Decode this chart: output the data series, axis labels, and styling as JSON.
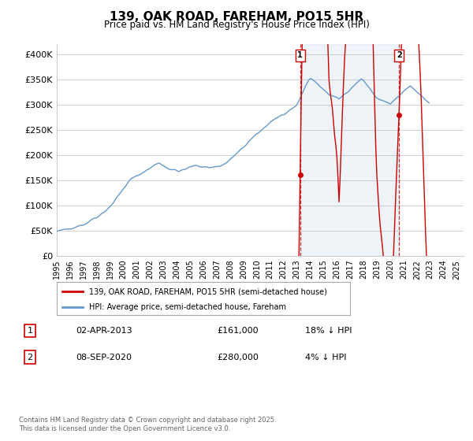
{
  "title": "139, OAK ROAD, FAREHAM, PO15 5HR",
  "subtitle": "Price paid vs. HM Land Registry's House Price Index (HPI)",
  "ylim": [
    0,
    420000
  ],
  "yticks": [
    0,
    50000,
    100000,
    150000,
    200000,
    250000,
    300000,
    350000,
    400000
  ],
  "ytick_labels": [
    "£0",
    "£50K",
    "£100K",
    "£150K",
    "£200K",
    "£250K",
    "£300K",
    "£350K",
    "£400K"
  ],
  "legend_red": "139, OAK ROAD, FAREHAM, PO15 5HR (semi-detached house)",
  "legend_blue": "HPI: Average price, semi-detached house, Fareham",
  "annotation1_label": "1",
  "annotation1_date": "02-APR-2013",
  "annotation1_price": "£161,000",
  "annotation1_hpi": "18% ↓ HPI",
  "annotation2_label": "2",
  "annotation2_date": "08-SEP-2020",
  "annotation2_price": "£280,000",
  "annotation2_hpi": "4% ↓ HPI",
  "footer": "Contains HM Land Registry data © Crown copyright and database right 2025.\nThis data is licensed under the Open Government Licence v3.0.",
  "red_color": "#cc0000",
  "blue_color": "#6699cc",
  "vline_color": "#cc0000",
  "background_color": "#ffffff",
  "grid_color": "#cccccc",
  "sale1_year": 2013.25,
  "sale1_value": 161000,
  "sale2_year": 2020.67,
  "sale2_value": 280000,
  "hpi_monthly": [
    48000,
    48500,
    49000,
    49800,
    50200,
    50800,
    51500,
    52000,
    52500,
    53000,
    53500,
    54000,
    54500,
    55000,
    55800,
    56500,
    57000,
    57800,
    58500,
    59000,
    59800,
    60500,
    61000,
    61500,
    62000,
    63000,
    64000,
    65000,
    66500,
    68000,
    69500,
    71000,
    72500,
    74000,
    75000,
    76000,
    77000,
    78500,
    80000,
    81500,
    83000,
    84500,
    86000,
    88000,
    90000,
    92000,
    94000,
    96000,
    98000,
    100500,
    103000,
    106000,
    109000,
    112000,
    115000,
    118000,
    121000,
    124000,
    127000,
    130000,
    133000,
    136000,
    139000,
    142000,
    145000,
    148000,
    150000,
    152000,
    154000,
    155000,
    156000,
    157000,
    158000,
    159000,
    160500,
    161500,
    163000,
    164500,
    166000,
    167500,
    169000,
    170000,
    171000,
    172000,
    174000,
    175500,
    177000,
    178500,
    180000,
    181000,
    182000,
    183000,
    184000,
    183500,
    182000,
    180500,
    179000,
    177500,
    176000,
    175000,
    174000,
    173000,
    172000,
    171500,
    171000,
    170500,
    170000,
    169500,
    169000,
    168500,
    168000,
    168500,
    169000,
    169500,
    170000,
    171000,
    172000,
    173000,
    174000,
    175000,
    176000,
    177000,
    177500,
    178000,
    178500,
    179000,
    179000,
    178500,
    178000,
    177500,
    177000,
    177000,
    177000,
    177000,
    176500,
    176000,
    175500,
    175000,
    175000,
    175500,
    176000,
    176500,
    177000,
    177000,
    177000,
    177500,
    178000,
    178500,
    179000,
    180000,
    181000,
    182000,
    183500,
    185000,
    187000,
    189000,
    191000,
    193000,
    195000,
    197000,
    199000,
    201000,
    203000,
    205000,
    207000,
    209000,
    211000,
    213000,
    215000,
    217500,
    220000,
    222500,
    225000,
    227000,
    229000,
    231000,
    233000,
    235000,
    237000,
    239000,
    241000,
    243000,
    245000,
    247000,
    249000,
    251000,
    253000,
    255000,
    257000,
    259000,
    261000,
    263000,
    265000,
    267000,
    268500,
    270000,
    271500,
    273000,
    274000,
    275000,
    276000,
    277000,
    278000,
    279000,
    280000,
    281000,
    282000,
    283000,
    284000,
    285000,
    287000,
    289000,
    291000,
    293000,
    295000,
    297000,
    300000,
    304000,
    308000,
    313000,
    318000,
    323000,
    328000,
    333000,
    338000,
    342000,
    346000,
    350000,
    352000,
    352000,
    350000,
    348000,
    346000,
    344000,
    342000,
    340000,
    338000,
    336000,
    334000,
    332000,
    330000,
    328000,
    326000,
    324000,
    322000,
    320000,
    319000,
    318000,
    317000,
    316000,
    315000,
    314000,
    313000,
    312000,
    311000,
    313000,
    315000,
    317000,
    319000,
    321000,
    323000,
    325000,
    327000,
    329000,
    331000,
    333000,
    335000,
    337000,
    339000,
    341000,
    343000,
    345000,
    347000,
    349000,
    351000,
    350000,
    348000,
    345000,
    342000,
    339000,
    336000,
    333000,
    330000,
    327000,
    324000,
    321000,
    318000,
    315000,
    313000,
    312000,
    311000,
    310000,
    309000,
    308000,
    307000,
    306000,
    305000,
    304000,
    303000,
    302000,
    301000,
    303000,
    305000,
    307000,
    309000,
    311000,
    313000,
    315000,
    317000,
    319000,
    321000,
    323000,
    325000,
    327000,
    329000,
    331000,
    333000,
    335000,
    337000,
    335000,
    333000,
    331000,
    329000,
    327000,
    325000,
    323000,
    321000,
    319000,
    317000,
    315000,
    313000,
    311000,
    309000,
    307000,
    305000,
    303000
  ],
  "xtick_years": [
    1995,
    1996,
    1997,
    1998,
    1999,
    2000,
    2001,
    2002,
    2003,
    2004,
    2005,
    2006,
    2007,
    2008,
    2009,
    2010,
    2011,
    2012,
    2013,
    2014,
    2015,
    2016,
    2017,
    2018,
    2019,
    2020,
    2021,
    2022,
    2023,
    2024,
    2025
  ]
}
